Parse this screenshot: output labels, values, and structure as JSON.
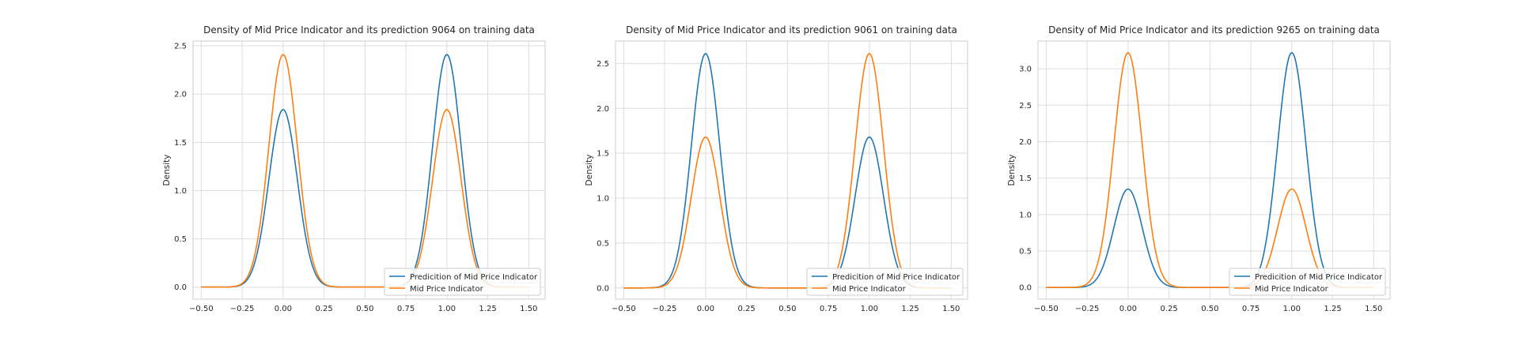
{
  "chart_data": [
    {
      "type": "line",
      "title": "Density of Mid Price Indicator and its prediction 9064 on training data",
      "xlabel": "",
      "ylabel": "Density",
      "xlim": [
        -0.55,
        1.6
      ],
      "ylim": [
        -0.125,
        2.55
      ],
      "xticks": [
        -0.5,
        -0.25,
        0.0,
        0.25,
        0.5,
        0.75,
        1.0,
        1.25,
        1.5
      ],
      "xtick_labels": [
        "−0.50",
        "−0.25",
        "0.00",
        "0.25",
        "0.50",
        "0.75",
        "1.00",
        "1.25",
        "1.50"
      ],
      "yticks": [
        0.0,
        0.5,
        1.0,
        1.5,
        2.0,
        2.5
      ],
      "ytick_labels": [
        "0.0",
        "0.5",
        "1.0",
        "1.5",
        "2.0",
        "2.5"
      ],
      "grid": true,
      "legend_position": "lower-right",
      "series": [
        {
          "name": "Predicition of Mid Price Indicator",
          "color": "#1f77b4",
          "components": [
            {
              "mean": 0.0,
              "peak": 1.84
            },
            {
              "mean": 1.0,
              "peak": 2.41
            }
          ]
        },
        {
          "name": "Mid Price Indicator",
          "color": "#ff7f0e",
          "components": [
            {
              "mean": 0.0,
              "peak": 2.41
            },
            {
              "mean": 1.0,
              "peak": 1.84
            }
          ]
        }
      ]
    },
    {
      "type": "line",
      "title": "Density of Mid Price Indicator and its prediction 9061 on training data",
      "xlabel": "",
      "ylabel": "Density",
      "xlim": [
        -0.55,
        1.6
      ],
      "ylim": [
        -0.125,
        2.75
      ],
      "xticks": [
        -0.5,
        -0.25,
        0.0,
        0.25,
        0.5,
        0.75,
        1.0,
        1.25,
        1.5
      ],
      "xtick_labels": [
        "−0.50",
        "−0.25",
        "0.00",
        "0.25",
        "0.50",
        "0.75",
        "1.00",
        "1.25",
        "1.50"
      ],
      "yticks": [
        0.0,
        0.5,
        1.0,
        1.5,
        2.0,
        2.5
      ],
      "ytick_labels": [
        "0.0",
        "0.5",
        "1.0",
        "1.5",
        "2.0",
        "2.5"
      ],
      "grid": true,
      "legend_position": "lower-right",
      "series": [
        {
          "name": "Predicition of Mid Price Indicator",
          "color": "#1f77b4",
          "components": [
            {
              "mean": 0.0,
              "peak": 2.61
            },
            {
              "mean": 1.0,
              "peak": 1.68
            }
          ]
        },
        {
          "name": "Mid Price Indicator",
          "color": "#ff7f0e",
          "components": [
            {
              "mean": 0.0,
              "peak": 1.68
            },
            {
              "mean": 1.0,
              "peak": 2.61
            }
          ]
        }
      ]
    },
    {
      "type": "line",
      "title": "Density of Mid Price Indicator and its prediction 9265 on training data",
      "xlabel": "",
      "ylabel": "Density",
      "xlim": [
        -0.55,
        1.6
      ],
      "ylim": [
        -0.16,
        3.38
      ],
      "xticks": [
        -0.5,
        -0.25,
        0.0,
        0.25,
        0.5,
        0.75,
        1.0,
        1.25,
        1.5
      ],
      "xtick_labels": [
        "−0.50",
        "−0.25",
        "0.00",
        "0.25",
        "0.50",
        "0.75",
        "1.00",
        "1.25",
        "1.50"
      ],
      "yticks": [
        0.0,
        0.5,
        1.0,
        1.5,
        2.0,
        2.5,
        3.0
      ],
      "ytick_labels": [
        "0.0",
        "0.5",
        "1.0",
        "1.5",
        "2.0",
        "2.5",
        "3.0"
      ],
      "grid": true,
      "legend_position": "lower-right",
      "series": [
        {
          "name": "Predicition of Mid Price Indicator",
          "color": "#1f77b4",
          "components": [
            {
              "mean": 0.0,
              "peak": 1.35
            },
            {
              "mean": 1.0,
              "peak": 3.22
            }
          ]
        },
        {
          "name": "Mid Price Indicator",
          "color": "#ff7f0e",
          "components": [
            {
              "mean": 0.0,
              "peak": 3.22
            },
            {
              "mean": 1.0,
              "peak": 1.35
            }
          ]
        }
      ]
    }
  ]
}
